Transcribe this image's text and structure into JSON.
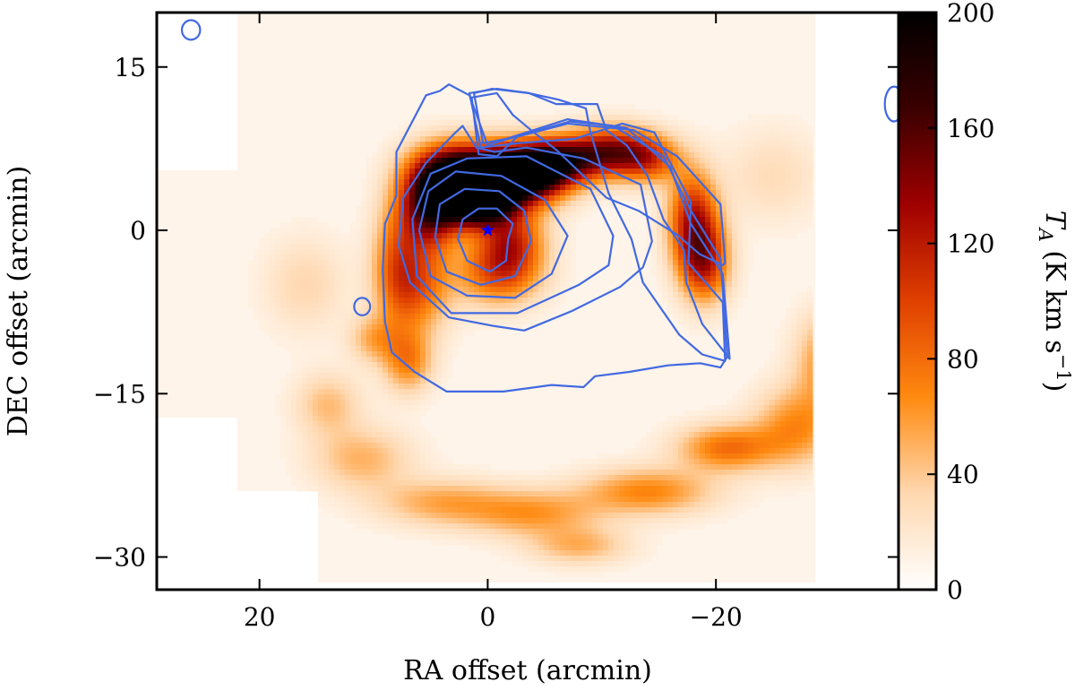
{
  "chart_data": {
    "type": "heatmap",
    "xlabel": "RA offset (arcmin)",
    "ylabel": "DEC offset (arcmin)",
    "xlim": [
      29,
      -36
    ],
    "ylim": [
      -33,
      20
    ],
    "x_ticks": [
      20,
      0,
      -20
    ],
    "x_tick_labels": [
      "20",
      "0",
      "−20"
    ],
    "y_ticks": [
      15,
      0,
      -15,
      -30
    ],
    "y_tick_labels": [
      "15",
      "0",
      "−15",
      "−30"
    ],
    "colorbar": {
      "label_main": "T",
      "label_sub": "A",
      "label_units": " (K km s",
      "label_exp": "−1",
      "label_close": ")",
      "range": [
        0,
        200
      ],
      "ticks": [
        0,
        40,
        80,
        120,
        160,
        200
      ],
      "tick_labels": [
        "0",
        "40",
        "80",
        "120",
        "160",
        "200"
      ],
      "colormap": "gist_heat_r"
    },
    "colors": {
      "contour": "#4169e1",
      "marker": "#0000ff",
      "colormap_stops": [
        "#ffffff",
        "#ffd8b0",
        "#ff8a10",
        "#e04000",
        "#a00000",
        "#3a0000",
        "#000000"
      ]
    },
    "marker": {
      "x": 0,
      "y": 0,
      "shape": "star"
    },
    "emission": [
      {
        "x": 3,
        "y": 5,
        "sx": 2.5,
        "sy": 2,
        "amp": 0.8
      },
      {
        "x": -1,
        "y": 4.5,
        "sx": 3,
        "sy": 2,
        "amp": 0.9
      },
      {
        "x": -4,
        "y": 5.5,
        "sx": 2.5,
        "sy": 1.6,
        "amp": 0.7
      },
      {
        "x": -7,
        "y": 6.5,
        "sx": 3,
        "sy": 1.5,
        "amp": 0.55
      },
      {
        "x": -11,
        "y": 7.5,
        "sx": 2.5,
        "sy": 1.5,
        "amp": 0.45
      },
      {
        "x": -14,
        "y": 6.5,
        "sx": 2,
        "sy": 1.5,
        "amp": 0.4
      },
      {
        "x": 5,
        "y": 2,
        "sx": 1.8,
        "sy": 2.5,
        "amp": 0.7
      },
      {
        "x": 1,
        "y": 2.5,
        "sx": 2,
        "sy": 1.5,
        "amp": 0.85
      },
      {
        "x": -2,
        "y": -1,
        "sx": 2,
        "sy": 2,
        "amp": 0.45
      },
      {
        "x": -1,
        "y": -4,
        "sx": 2.5,
        "sy": 2,
        "amp": 0.4
      },
      {
        "x": -18,
        "y": 1,
        "sx": 1.5,
        "sy": 3,
        "amp": 0.55
      },
      {
        "x": -19,
        "y": -3,
        "sx": 1.5,
        "sy": 2.5,
        "amp": 0.5
      },
      {
        "x": 6,
        "y": -5,
        "sx": 2,
        "sy": 3,
        "amp": 0.35
      },
      {
        "x": 8,
        "y": -3,
        "sx": 1.5,
        "sy": 4,
        "amp": 0.3
      },
      {
        "x": 7,
        "y": -12,
        "sx": 1.5,
        "sy": 2,
        "amp": 0.3
      },
      {
        "x": 10,
        "y": -10,
        "sx": 1.5,
        "sy": 1.5,
        "amp": 0.2
      },
      {
        "x": -30,
        "y": -12,
        "sx": 2,
        "sy": 3,
        "amp": 0.3
      },
      {
        "x": -27,
        "y": -18,
        "sx": 2.5,
        "sy": 2.5,
        "amp": 0.28
      },
      {
        "x": -21,
        "y": -20,
        "sx": 3,
        "sy": 1.5,
        "amp": 0.35
      },
      {
        "x": -14,
        "y": -24,
        "sx": 4,
        "sy": 1.5,
        "amp": 0.3
      },
      {
        "x": -4,
        "y": -26,
        "sx": 4,
        "sy": 1.5,
        "amp": 0.25
      },
      {
        "x": 4,
        "y": -25,
        "sx": 4,
        "sy": 1.5,
        "amp": 0.22
      },
      {
        "x": 11,
        "y": -21,
        "sx": 3,
        "sy": 2,
        "amp": 0.2
      },
      {
        "x": 14,
        "y": -16,
        "sx": 2,
        "sy": 2,
        "amp": 0.18
      },
      {
        "x": -8,
        "y": -29,
        "sx": 3,
        "sy": 1.2,
        "amp": 0.2
      },
      {
        "x": 16,
        "y": -5,
        "sx": 2.5,
        "sy": 3,
        "amp": 0.12
      },
      {
        "x": -25,
        "y": 5,
        "sx": 3,
        "sy": 3,
        "amp": 0.1
      }
    ],
    "contours": [
      [
        [
          -1.8,
          -0.8
        ],
        [
          -2.2,
          0.6
        ],
        [
          -0.8,
          2.0
        ],
        [
          0.8,
          2.0
        ],
        [
          2.2,
          1.0
        ],
        [
          2.6,
          -0.8
        ],
        [
          1.8,
          -2.8
        ],
        [
          -0.2,
          -3.8
        ],
        [
          -1.6,
          -2.8
        ]
      ],
      [
        [
          -3.8,
          -1.0
        ],
        [
          -3.2,
          1.8
        ],
        [
          -1.0,
          3.6
        ],
        [
          2.0,
          3.8
        ],
        [
          4.2,
          2.4
        ],
        [
          4.6,
          -0.6
        ],
        [
          3.6,
          -3.8
        ],
        [
          0.6,
          -5.0
        ],
        [
          -2.4,
          -4.2
        ]
      ],
      [
        [
          -7.0,
          -0.5
        ],
        [
          -5.0,
          2.8
        ],
        [
          -1.2,
          5.0
        ],
        [
          2.8,
          5.4
        ],
        [
          5.2,
          3.6
        ],
        [
          6.0,
          0.0
        ],
        [
          5.0,
          -4.2
        ],
        [
          1.8,
          -6.0
        ],
        [
          -2.4,
          -6.2
        ],
        [
          -5.6,
          -4.0
        ]
      ],
      [
        [
          -11.0,
          -0.5
        ],
        [
          -9.0,
          3.8
        ],
        [
          -3.4,
          6.8
        ],
        [
          1.8,
          6.6
        ],
        [
          5.0,
          5.2
        ],
        [
          6.6,
          1.0
        ],
        [
          6.2,
          -4.2
        ],
        [
          3.2,
          -7.6
        ],
        [
          -2.6,
          -7.6
        ],
        [
          -8.0,
          -5.0
        ],
        [
          -10.6,
          -3.2
        ]
      ],
      [
        [
          -14.4,
          -1.0
        ],
        [
          -13.4,
          4.2
        ],
        [
          -8.4,
          6.6
        ],
        [
          -3.4,
          7.6
        ],
        [
          -0.6,
          7.2
        ],
        [
          1.0,
          7.6
        ],
        [
          2.2,
          9.6
        ],
        [
          3.0,
          8.8
        ],
        [
          5.4,
          6.2
        ],
        [
          7.4,
          3.0
        ],
        [
          7.8,
          -1.4
        ],
        [
          6.8,
          -4.8
        ],
        [
          3.4,
          -8.0
        ],
        [
          -0.6,
          -8.8
        ],
        [
          -3.2,
          -9.2
        ],
        [
          -7.4,
          -7.4
        ],
        [
          -11.6,
          -5.2
        ],
        [
          -13.6,
          -3.4
        ]
      ],
      [
        [
          -20.8,
          -3.0
        ],
        [
          -20.4,
          2.4
        ],
        [
          -16.6,
          6.8
        ],
        [
          -12.8,
          9.2
        ],
        [
          -7.0,
          9.8
        ],
        [
          -2.6,
          8.6
        ],
        [
          -0.8,
          6.8
        ],
        [
          0.8,
          7.0
        ],
        [
          1.4,
          12.2
        ],
        [
          -0.8,
          12.6
        ],
        [
          -2.2,
          10.6
        ],
        [
          -3.8,
          9.2
        ],
        [
          -6.0,
          7.4
        ],
        [
          -8.2,
          5.2
        ],
        [
          -10.4,
          3.0
        ],
        [
          -13.2,
          1.8
        ],
        [
          -16.6,
          -0.4
        ],
        [
          -18.6,
          -2.2
        ],
        [
          -20.6,
          -3.2
        ]
      ],
      [
        [
          -20.8,
          -12.0
        ],
        [
          -20.6,
          -6.6
        ],
        [
          -17.6,
          -3.0
        ],
        [
          -17.8,
          2.6
        ],
        [
          -14.6,
          9.0
        ],
        [
          -11.8,
          9.8
        ],
        [
          -7.6,
          8.4
        ],
        [
          -2.6,
          8.0
        ],
        [
          0.6,
          7.6
        ],
        [
          1.6,
          12.6
        ],
        [
          -0.8,
          13.0
        ],
        [
          -3.6,
          12.6
        ],
        [
          -6.2,
          12.0
        ],
        [
          -8.6,
          11.2
        ],
        [
          -9.0,
          9.0
        ],
        [
          -10.6,
          3.4
        ],
        [
          -12.6,
          -0.8
        ],
        [
          -13.6,
          -4.8
        ],
        [
          -16.8,
          -9.6
        ],
        [
          -18.8,
          -11.4
        ]
      ],
      [
        [
          -21.2,
          -11.8
        ],
        [
          -20.6,
          -4.0
        ],
        [
          -17.8,
          0.6
        ],
        [
          -16.0,
          5.8
        ],
        [
          -12.2,
          9.4
        ],
        [
          -7.0,
          10.2
        ],
        [
          -1.6,
          8.4
        ],
        [
          0.4,
          8.0
        ],
        [
          1.2,
          12.6
        ],
        [
          -0.4,
          13.0
        ],
        [
          -3.6,
          12.6
        ],
        [
          -6.0,
          11.6
        ],
        [
          -9.6,
          11.6
        ],
        [
          -10.4,
          9.2
        ],
        [
          -12.2,
          7.8
        ],
        [
          -14.0,
          5.0
        ],
        [
          -15.4,
          1.0
        ],
        [
          -17.2,
          -1.8
        ],
        [
          -17.4,
          -4.8
        ],
        [
          -18.8,
          -8.6
        ]
      ],
      [
        [
          -21.0,
          -11.6
        ],
        [
          -20.4,
          -2.6
        ],
        [
          -17.8,
          1.8
        ],
        [
          -15.4,
          6.8
        ],
        [
          -11.0,
          9.6
        ],
        [
          -7.2,
          10.0
        ],
        [
          -1.8,
          8.4
        ],
        [
          0.0,
          7.8
        ],
        [
          1.6,
          12.4
        ],
        [
          3.4,
          13.4
        ],
        [
          4.2,
          12.8
        ],
        [
          5.4,
          12.4
        ],
        [
          8.0,
          7.2
        ],
        [
          8.0,
          3.2
        ],
        [
          9.0,
          0.6
        ],
        [
          9.2,
          -3.6
        ],
        [
          9.0,
          -8.4
        ],
        [
          8.4,
          -11.2
        ],
        [
          6.4,
          -13.0
        ],
        [
          3.6,
          -14.8
        ],
        [
          -1.4,
          -14.8
        ],
        [
          -5.6,
          -14.2
        ],
        [
          -8.4,
          -14.4
        ],
        [
          -9.4,
          -13.4
        ],
        [
          -12.4,
          -13.0
        ],
        [
          -15.8,
          -12.4
        ],
        [
          -18.6,
          -12.2
        ],
        [
          -20.4,
          -12.6
        ]
      ]
    ],
    "small_contours": [
      {
        "x": 11,
        "y": -7,
        "rx": 0.7,
        "ry": 0.8
      },
      {
        "x": 26,
        "y": 18.4,
        "rx": 0.8,
        "ry": 0.9
      },
      {
        "x": -35.6,
        "y": 11.6,
        "rx": 0.8,
        "ry": 1.6
      }
    ]
  }
}
